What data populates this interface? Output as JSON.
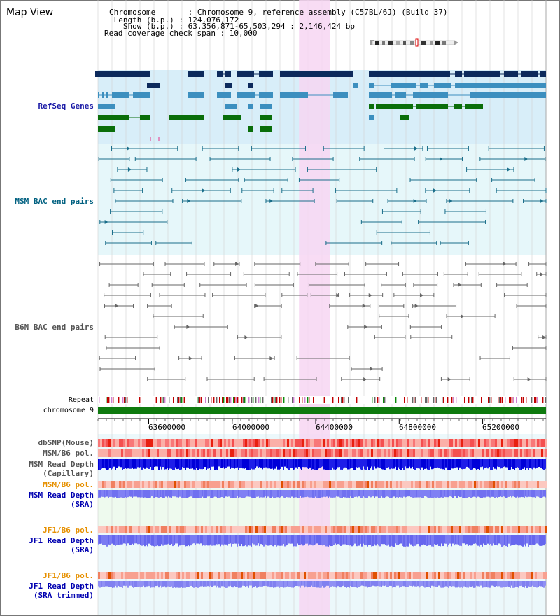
{
  "title": "Map View",
  "header": {
    "chromosome": "Chromosome       : Chromosome 9, reference assembly (C57BL/6J) (Build 37)",
    "length": " Length (b.p.) : 124,076,172",
    "show": "   Show (b.p.) : 63,356,871-65,503,294 : 2,146,424 bp",
    "coverage": "Read coverage check span : 10,000"
  },
  "tracks": {
    "refseq": "RefSeq Genes",
    "msm_bac": "MSM BAC end pairs",
    "b6n_bac": "B6N BAC end pairs",
    "repeat": "Repeat",
    "chromosome": "chromosome 9",
    "dbsnp": "dbSNP(Mouse)",
    "msm_b6_pol1": "MSM/B6 pol.",
    "msm_depth_cap_1": "MSM Read Depth",
    "msm_depth_cap_2": "(Capillary)",
    "msm_b6_pol2": "MSM/B6 pol.",
    "msm_depth_sra_1": "MSM Read Depth",
    "msm_depth_sra_2": "(SRA)",
    "jf1_b6_pol1": "JF1/B6 pol.",
    "jf1_depth_sra_1": "JF1 Read Depth",
    "jf1_depth_sra_2": "(SRA)",
    "jf1_b6_pol2": "JF1/B6 pol.",
    "jf1_depth_trim_1": "JF1 Read Depth",
    "jf1_depth_trim_2": "(SRA trimmed)"
  },
  "axis": {
    "ticks": [
      "63600000",
      "64000000",
      "64400000",
      "64800000",
      "65200000"
    ],
    "tick_values": [
      63600000,
      64000000,
      64400000,
      64800000,
      65200000
    ],
    "range": [
      63356871,
      65503294
    ]
  },
  "highlight_range": [
    64320000,
    64470000
  ],
  "colors": {
    "refseq_dark": "#0d2a5c",
    "refseq_mid": "#3c8fbf",
    "refseq_green": "#0a6e0a",
    "msm_line": "#1a6e8a",
    "b6n_line": "#666666",
    "highlight": "#f7d6f2",
    "chrom_bar": "#0e7a0e"
  }
}
